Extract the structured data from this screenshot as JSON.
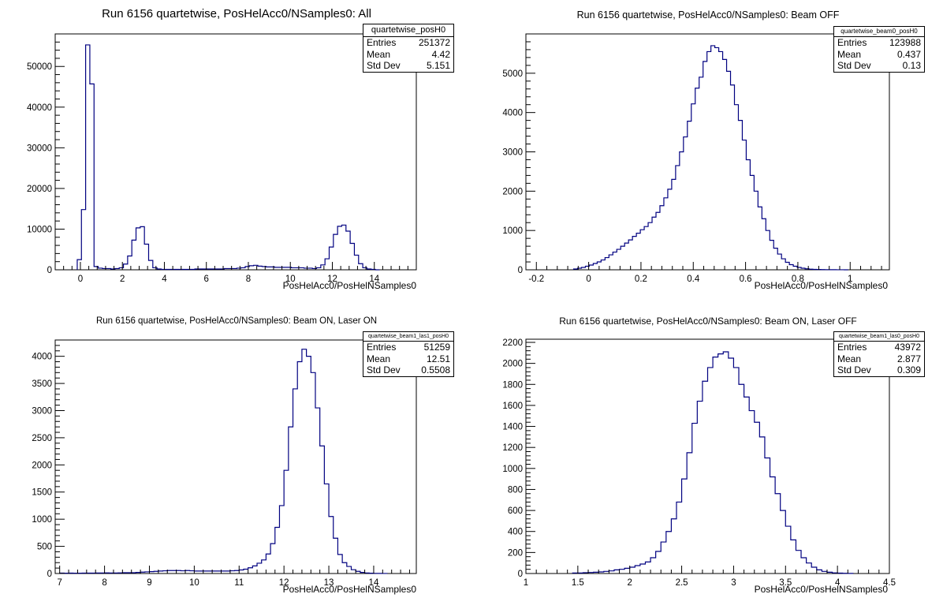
{
  "colors": {
    "histogram": "#000080",
    "axes": "#000000",
    "background": "#ffffff"
  },
  "chart_data": [
    {
      "type": "bar",
      "title": "Run 6156 quartetwise, PosHelAcc0/NSamples0: All",
      "xlabel": "PosHelAcc0/PosHelNSamples0",
      "ylabel": "",
      "xlim": [
        -1.2,
        16.0
      ],
      "ylim": [
        0,
        58000
      ],
      "xticks": [
        0,
        2,
        4,
        6,
        8,
        10,
        12,
        14
      ],
      "yticks": [
        0,
        10000,
        20000,
        30000,
        40000,
        50000
      ],
      "x": [
        -0.05,
        0.15,
        0.35,
        0.55,
        0.75,
        0.95,
        1.15,
        1.35,
        1.55,
        1.75,
        1.95,
        2.15,
        2.35,
        2.55,
        2.75,
        2.95,
        3.15,
        3.35,
        3.55,
        3.75,
        3.95,
        4.15,
        4.35,
        4.55,
        4.75,
        4.95,
        5.15,
        5.35,
        5.55,
        5.75,
        5.95,
        6.15,
        6.35,
        6.55,
        6.75,
        6.95,
        7.15,
        7.35,
        7.55,
        7.75,
        7.95,
        8.15,
        8.35,
        8.55,
        8.75,
        8.95,
        9.15,
        9.35,
        9.55,
        9.75,
        9.95,
        10.15,
        10.35,
        10.55,
        10.75,
        10.95,
        11.15,
        11.35,
        11.55,
        11.75,
        11.95,
        12.15,
        12.35,
        12.55,
        12.75,
        12.95,
        13.15,
        13.35,
        13.55,
        13.75,
        13.95,
        14.15
      ],
      "values": [
        2500,
        14800,
        55300,
        45700,
        800,
        400,
        300,
        300,
        200,
        300,
        500,
        1400,
        3400,
        7300,
        10300,
        10600,
        6300,
        2300,
        500,
        200,
        100,
        100,
        100,
        100,
        100,
        100,
        100,
        100,
        200,
        200,
        200,
        200,
        200,
        200,
        200,
        300,
        300,
        300,
        400,
        500,
        800,
        1000,
        1100,
        900,
        800,
        700,
        700,
        600,
        600,
        600,
        600,
        500,
        500,
        500,
        400,
        400,
        300,
        500,
        1200,
        2700,
        5600,
        8700,
        10700,
        11000,
        9500,
        6500,
        3600,
        1500,
        500,
        200,
        100,
        0
      ],
      "stats": {
        "name": "quartetwise_posH0",
        "entries_label": "Entries",
        "entries": "251372",
        "mean_label": "Mean",
        "mean": "4.42",
        "stddev_label": "Std Dev",
        "stddev": "5.151"
      }
    },
    {
      "type": "bar",
      "title": "Run 6156 quartetwise, PosHelAcc0/NSamples0: Beam OFF",
      "xlabel": "PosHelAcc0/PosHelNSamples0",
      "ylabel": "",
      "xlim": [
        -0.24,
        1.15
      ],
      "ylim": [
        0,
        6000
      ],
      "xticks": [
        -0.2,
        0,
        0.2,
        0.4,
        0.6,
        0.8,
        1
      ],
      "yticks": [
        0,
        1000,
        2000,
        3000,
        4000,
        5000
      ],
      "x": [
        -0.05,
        -0.035,
        -0.02,
        -0.005,
        0.01,
        0.025,
        0.04,
        0.055,
        0.07,
        0.085,
        0.1,
        0.115,
        0.13,
        0.145,
        0.16,
        0.175,
        0.19,
        0.205,
        0.22,
        0.235,
        0.25,
        0.265,
        0.28,
        0.295,
        0.31,
        0.325,
        0.34,
        0.355,
        0.37,
        0.385,
        0.4,
        0.415,
        0.43,
        0.445,
        0.46,
        0.475,
        0.49,
        0.505,
        0.52,
        0.535,
        0.55,
        0.565,
        0.58,
        0.595,
        0.61,
        0.625,
        0.64,
        0.655,
        0.67,
        0.685,
        0.7,
        0.715,
        0.73,
        0.745,
        0.76,
        0.775,
        0.79,
        0.805,
        0.82,
        0.835,
        0.85,
        0.865,
        0.88,
        0.895,
        0.91,
        0.925,
        0.94,
        0.955,
        0.97,
        0.985
      ],
      "values": [
        20,
        40,
        60,
        90,
        120,
        160,
        200,
        250,
        310,
        380,
        450,
        520,
        600,
        680,
        760,
        850,
        930,
        1020,
        1100,
        1200,
        1340,
        1460,
        1630,
        1830,
        2050,
        2300,
        2650,
        3000,
        3380,
        3780,
        4220,
        4620,
        4900,
        5300,
        5550,
        5700,
        5650,
        5550,
        5350,
        5050,
        4700,
        4200,
        3800,
        3300,
        2800,
        2400,
        2000,
        1600,
        1300,
        1000,
        750,
        550,
        400,
        280,
        190,
        130,
        90,
        60,
        40,
        25,
        15,
        10,
        8,
        5,
        4,
        3,
        2,
        1,
        1,
        0
      ],
      "stats": {
        "name": "quartetwise_beam0_posH0",
        "entries_label": "Entries",
        "entries": "123988",
        "mean_label": "Mean",
        "mean": "0.437",
        "stddev_label": "Std Dev",
        "stddev": "0.13"
      }
    },
    {
      "type": "bar",
      "title": "Run 6156 quartetwise, PosHelAcc0/NSamples0: Beam ON, Laser ON",
      "xlabel": "PosHelAcc0/PosHelNSamples0",
      "ylabel": "",
      "xlim": [
        6.9,
        14.95
      ],
      "ylim": [
        0,
        4300
      ],
      "xticks": [
        7,
        8,
        9,
        10,
        11,
        12,
        13,
        14
      ],
      "yticks": [
        0,
        500,
        1000,
        1500,
        2000,
        2500,
        3000,
        3500,
        4000
      ],
      "x": [
        7.05,
        7.15,
        7.25,
        7.35,
        7.45,
        7.55,
        7.65,
        7.75,
        7.85,
        7.95,
        8.05,
        8.15,
        8.25,
        8.35,
        8.45,
        8.55,
        8.65,
        8.75,
        8.85,
        8.95,
        9.05,
        9.15,
        9.25,
        9.35,
        9.45,
        9.55,
        9.65,
        9.75,
        9.85,
        9.95,
        10.05,
        10.15,
        10.25,
        10.35,
        10.45,
        10.55,
        10.65,
        10.75,
        10.85,
        10.95,
        11.05,
        11.15,
        11.25,
        11.35,
        11.45,
        11.55,
        11.65,
        11.75,
        11.85,
        11.95,
        12.05,
        12.15,
        12.25,
        12.35,
        12.45,
        12.55,
        12.65,
        12.75,
        12.85,
        12.95,
        13.05,
        13.15,
        13.25,
        13.35,
        13.45,
        13.55,
        13.65,
        13.75,
        13.85,
        13.95,
        14.05,
        14.15,
        14.25
      ],
      "values": [
        8,
        6,
        8,
        6,
        6,
        8,
        8,
        8,
        10,
        10,
        12,
        10,
        10,
        12,
        15,
        15,
        15,
        20,
        25,
        30,
        35,
        40,
        45,
        50,
        55,
        55,
        55,
        50,
        55,
        50,
        45,
        45,
        45,
        45,
        45,
        45,
        45,
        45,
        50,
        55,
        65,
        80,
        105,
        140,
        190,
        250,
        360,
        550,
        850,
        1250,
        1900,
        2700,
        3400,
        3900,
        4130,
        4000,
        3700,
        3050,
        2350,
        1650,
        1050,
        650,
        350,
        200,
        130,
        70,
        40,
        20,
        10,
        5,
        3,
        2,
        1
      ],
      "stats": {
        "name": "quartetwise_beam1_las1_posH0",
        "entries_label": "Entries",
        "entries": "51259",
        "mean_label": "Mean",
        "mean": "12.51",
        "stddev_label": "Std Dev",
        "stddev": "0.5508"
      }
    },
    {
      "type": "bar",
      "title": "Run 6156 quartetwise, PosHelAcc0/NSamples0: Beam ON, Laser OFF",
      "xlabel": "PosHelAcc0/PosHelNSamples0",
      "ylabel": "",
      "xlim": [
        1.0,
        4.5
      ],
      "ylim": [
        0,
        2230
      ],
      "xticks": [
        1,
        1.5,
        2,
        2.5,
        3,
        3.5,
        4,
        4.5
      ],
      "yticks": [
        0,
        200,
        400,
        600,
        800,
        1000,
        1200,
        1400,
        1600,
        1800,
        2000,
        2200
      ],
      "x": [
        1.475,
        1.525,
        1.575,
        1.625,
        1.675,
        1.725,
        1.775,
        1.825,
        1.875,
        1.925,
        1.975,
        2.025,
        2.075,
        2.125,
        2.175,
        2.225,
        2.275,
        2.325,
        2.375,
        2.425,
        2.475,
        2.525,
        2.575,
        2.625,
        2.675,
        2.725,
        2.775,
        2.825,
        2.875,
        2.925,
        2.975,
        3.025,
        3.075,
        3.125,
        3.175,
        3.225,
        3.275,
        3.325,
        3.375,
        3.425,
        3.475,
        3.525,
        3.575,
        3.625,
        3.675,
        3.725,
        3.775,
        3.825,
        3.875,
        3.925,
        3.975,
        4.025,
        4.075,
        4.125
      ],
      "values": [
        5,
        5,
        8,
        10,
        12,
        15,
        20,
        25,
        35,
        40,
        50,
        60,
        75,
        90,
        110,
        150,
        210,
        300,
        400,
        520,
        680,
        900,
        1150,
        1430,
        1640,
        1830,
        1960,
        2060,
        2090,
        2110,
        2050,
        1960,
        1800,
        1680,
        1550,
        1440,
        1300,
        1100,
        920,
        760,
        600,
        450,
        320,
        220,
        150,
        100,
        60,
        35,
        20,
        12,
        6,
        4,
        2,
        1
      ],
      "stats": {
        "name": "quartetwise_beam1_las0_posH0",
        "entries_label": "Entries",
        "entries": "43972",
        "mean_label": "Mean",
        "mean": "2.877",
        "stddev_label": "Std Dev",
        "stddev": "0.309"
      }
    }
  ]
}
